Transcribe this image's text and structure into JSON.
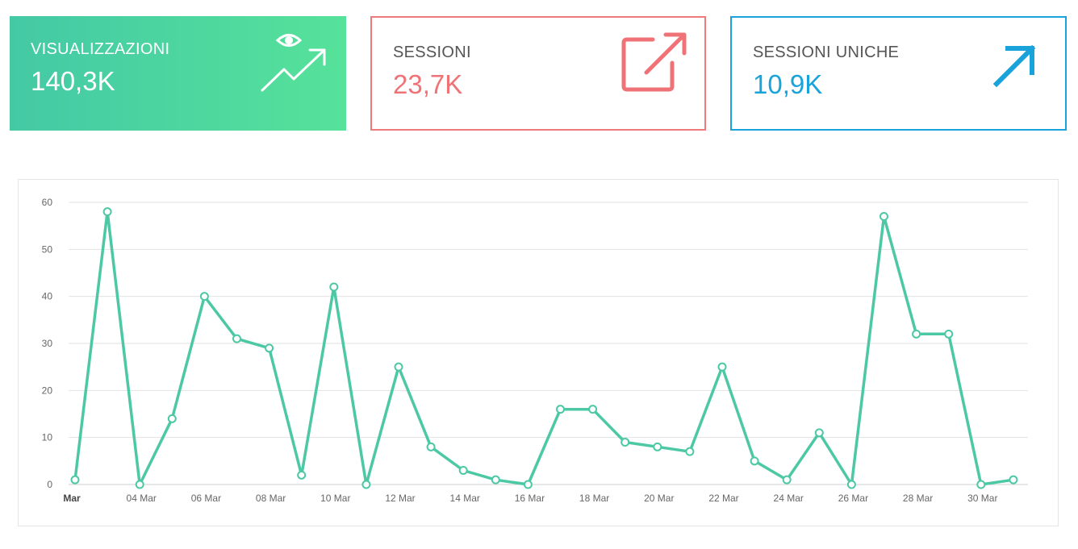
{
  "cards": {
    "views": {
      "label": "VISUALIZZAZIONI",
      "value": "140,3K",
      "icon": "eye-trending-up-icon",
      "color": "#4fd6a0"
    },
    "sessions": {
      "label": "SESSIONI",
      "value": "23,7K",
      "icon": "external-link-icon",
      "color": "#ef7376"
    },
    "unique_sessions": {
      "label": "SESSIONI UNICHE",
      "value": "10,9K",
      "icon": "arrow-up-right-icon",
      "color": "#1aa2da"
    }
  },
  "chart_data": {
    "type": "line",
    "x": [
      "02 Mar",
      "03 Mar",
      "04 Mar",
      "05 Mar",
      "06 Mar",
      "07 Mar",
      "08 Mar",
      "09 Mar",
      "10 Mar",
      "11 Mar",
      "12 Mar",
      "13 Mar",
      "14 Mar",
      "15 Mar",
      "16 Mar",
      "17 Mar",
      "18 Mar",
      "19 Mar",
      "20 Mar",
      "21 Mar",
      "22 Mar",
      "23 Mar",
      "24 Mar",
      "25 Mar",
      "26 Mar",
      "27 Mar",
      "28 Mar",
      "29 Mar",
      "30 Mar",
      "31 Mar"
    ],
    "series": [
      {
        "values": [
          1,
          58,
          0,
          14,
          40,
          31,
          29,
          2,
          42,
          0,
          25,
          8,
          3,
          1,
          0,
          16,
          16,
          9,
          8,
          7,
          25,
          5,
          1,
          11,
          0,
          57,
          32,
          32,
          0,
          1
        ],
        "color": "#4cc8a4"
      }
    ],
    "x_tick_labels": [
      "Mar",
      "04 Mar",
      "06 Mar",
      "08 Mar",
      "10 Mar",
      "12 Mar",
      "14 Mar",
      "16 Mar",
      "18 Mar",
      "20 Mar",
      "22 Mar",
      "24 Mar",
      "26 Mar",
      "28 Mar",
      "30 Mar"
    ],
    "y_ticks": [
      0,
      10,
      20,
      30,
      40,
      50,
      60
    ],
    "ylim": [
      0,
      60
    ],
    "grid": true,
    "title": "",
    "xlabel": "",
    "ylabel": ""
  }
}
